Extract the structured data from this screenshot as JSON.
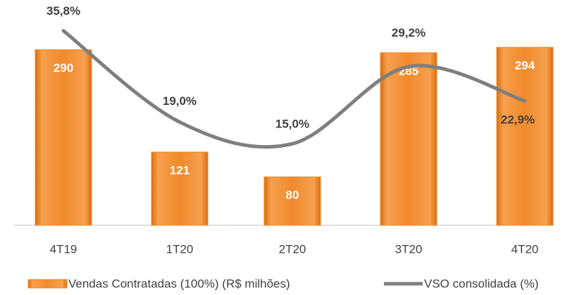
{
  "chart_data": {
    "type": "bar-line",
    "categories": [
      "4T19",
      "1T20",
      "2T20",
      "3T20",
      "4T20"
    ],
    "series": [
      {
        "name": "Vendas Contratadas (100%) (R$ milhões)",
        "type": "bar",
        "color": "#f08a2c",
        "values": [
          290,
          121,
          80,
          285,
          294
        ]
      },
      {
        "name": "VSO consolidada (%)",
        "type": "line",
        "axis": "y2",
        "color": "#7f7f7f",
        "values": [
          35.8,
          19.0,
          15.0,
          29.2,
          22.9
        ],
        "value_labels": [
          "35,8%",
          "19,0%",
          "15,0%",
          "29,2%",
          "22,9%"
        ]
      }
    ],
    "ylim": [
      0,
      350
    ],
    "y2lim": [
      0,
      39
    ],
    "legend": "bottom"
  }
}
